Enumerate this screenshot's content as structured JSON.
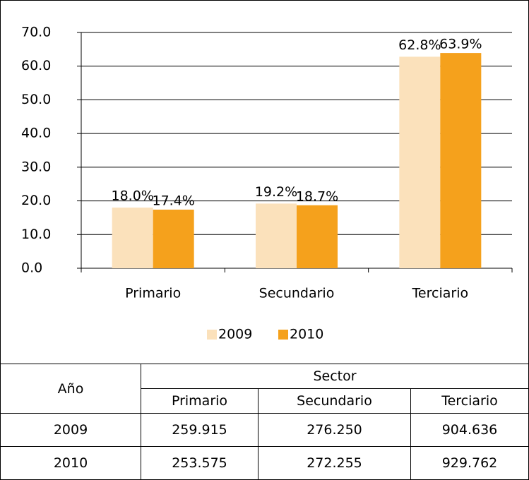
{
  "chart_data": {
    "type": "bar",
    "categories": [
      "Primario",
      "Secundario",
      "Terciario"
    ],
    "series": [
      {
        "name": "2009",
        "color": "#fbe1bb",
        "values": [
          18.0,
          19.2,
          62.8
        ],
        "value_labels": [
          "18.0%",
          "19.2%",
          "62.8%"
        ]
      },
      {
        "name": "2010",
        "color": "#f5a11c",
        "values": [
          17.4,
          18.7,
          63.9
        ],
        "value_labels": [
          "17.4%",
          "18.7%",
          "63.9%"
        ]
      }
    ],
    "ylim": [
      0,
      70
    ],
    "yticks": [
      {
        "value": 0,
        "label": "0.0"
      },
      {
        "value": 10,
        "label": "10.0"
      },
      {
        "value": 20,
        "label": "20.0"
      },
      {
        "value": 30,
        "label": "30.0"
      },
      {
        "value": 40,
        "label": "40.0"
      },
      {
        "value": 50,
        "label": "50.0"
      },
      {
        "value": 60,
        "label": "60.0"
      },
      {
        "value": 70,
        "label": "70.0"
      }
    ],
    "grid": true,
    "legend": "bottom"
  },
  "table": {
    "header": [
      "Año",
      "Sector"
    ],
    "subheader": [
      "Primario",
      "Secundario",
      "Terciario"
    ],
    "rows": [
      [
        "2009",
        "259.915",
        "276.250",
        "904.636"
      ],
      [
        "2010",
        "253.575",
        "272.255",
        "929.762"
      ]
    ]
  }
}
